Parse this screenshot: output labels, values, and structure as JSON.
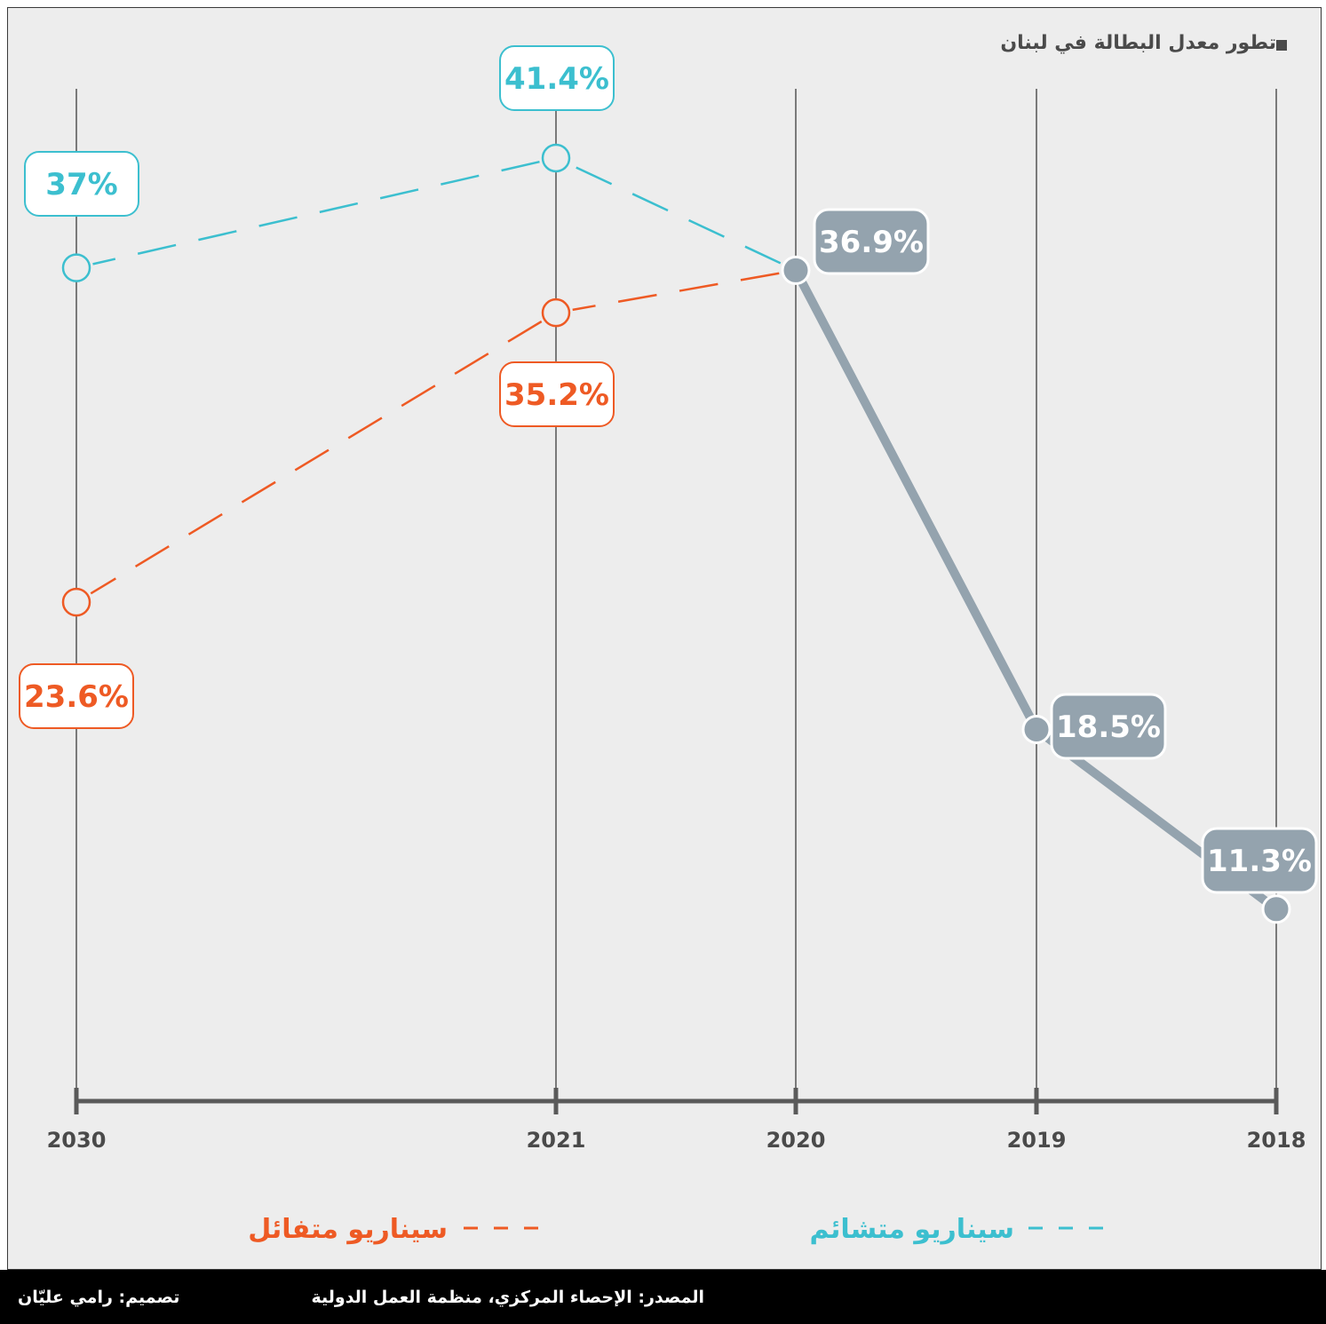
{
  "title": "تطور معدل البطالة في لبنان",
  "footer": {
    "source": "المصدر: الإحصاء المركزي، منظمة العمل الدولية",
    "design": "تصميم: رامي عليّان"
  },
  "colors": {
    "background": "#ededed",
    "actual": "#94a3ae",
    "pessimistic": "#3cbfcf",
    "optimistic": "#ee5a24",
    "axis": "#5a5a5a",
    "footer": "#000000"
  },
  "chart_data": {
    "type": "line",
    "title": "تطور معدل البطالة في لبنان",
    "x_categories": [
      "2018",
      "2019",
      "2020",
      "2021",
      "2030"
    ],
    "x_direction": "right-to-left",
    "grid": true,
    "legend_position": "bottom",
    "series": [
      {
        "name": "",
        "style": "solid",
        "color": "#94a3ae",
        "points": [
          {
            "x": "2018",
            "y": 11.3,
            "label": "11.3%"
          },
          {
            "x": "2019",
            "y": 18.5,
            "label": "18.5%"
          },
          {
            "x": "2020",
            "y": 36.9,
            "label": "36.9%"
          }
        ]
      },
      {
        "name": "سيناريو متشائم",
        "style": "dashed",
        "color": "#3cbfcf",
        "points": [
          {
            "x": "2020",
            "y": 36.9
          },
          {
            "x": "2021",
            "y": 41.4,
            "label": "41.4%"
          },
          {
            "x": "2030",
            "y": 37,
            "label": "37%"
          }
        ]
      },
      {
        "name": "سيناريو متفائل",
        "style": "dashed",
        "color": "#ee5a24",
        "points": [
          {
            "x": "2020",
            "y": 36.9
          },
          {
            "x": "2021",
            "y": 35.2,
            "label": "35.2%"
          },
          {
            "x": "2030",
            "y": 23.6,
            "label": "23.6%"
          }
        ]
      }
    ]
  }
}
